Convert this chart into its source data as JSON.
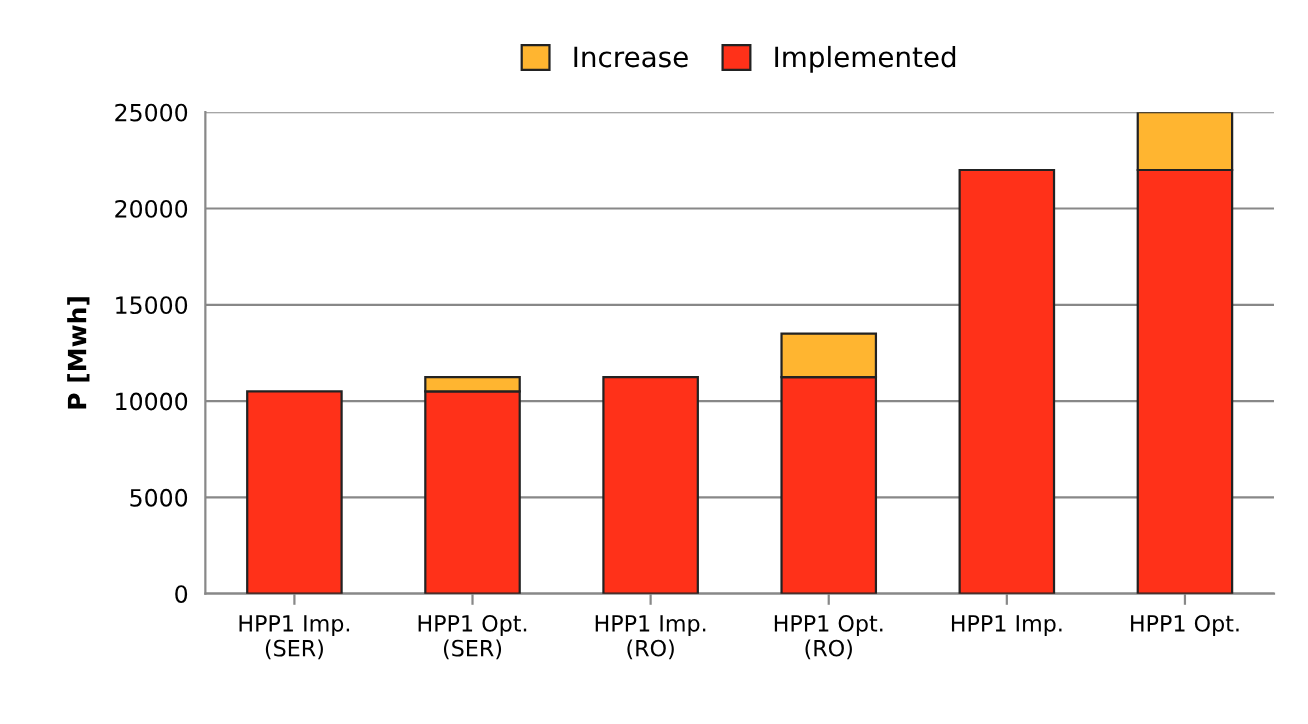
{
  "chart_data": {
    "type": "bar",
    "stacked": true,
    "ylabel": "P [Mwh]",
    "categories": [
      "HPP1 Imp.\n(SER)",
      "HPP1 Opt.\n(SER)",
      "HPP1 Imp.\n(RO)",
      "HPP1 Opt.\n(RO)",
      "HPP1 Imp.",
      "HPP1 Opt."
    ],
    "series": [
      {
        "name": "Implemented",
        "color": "#ff3119",
        "values": [
          10500,
          10500,
          11250,
          11250,
          22000,
          22000
        ]
      },
      {
        "name": "Increase",
        "color": "#ffb530",
        "values": [
          null,
          750,
          null,
          2250,
          null,
          3000
        ]
      }
    ],
    "ylim": [
      0,
      25000
    ],
    "yticks": [
      0,
      5000,
      10000,
      15000,
      20000,
      25000
    ],
    "grid": "y",
    "legend": "top"
  }
}
